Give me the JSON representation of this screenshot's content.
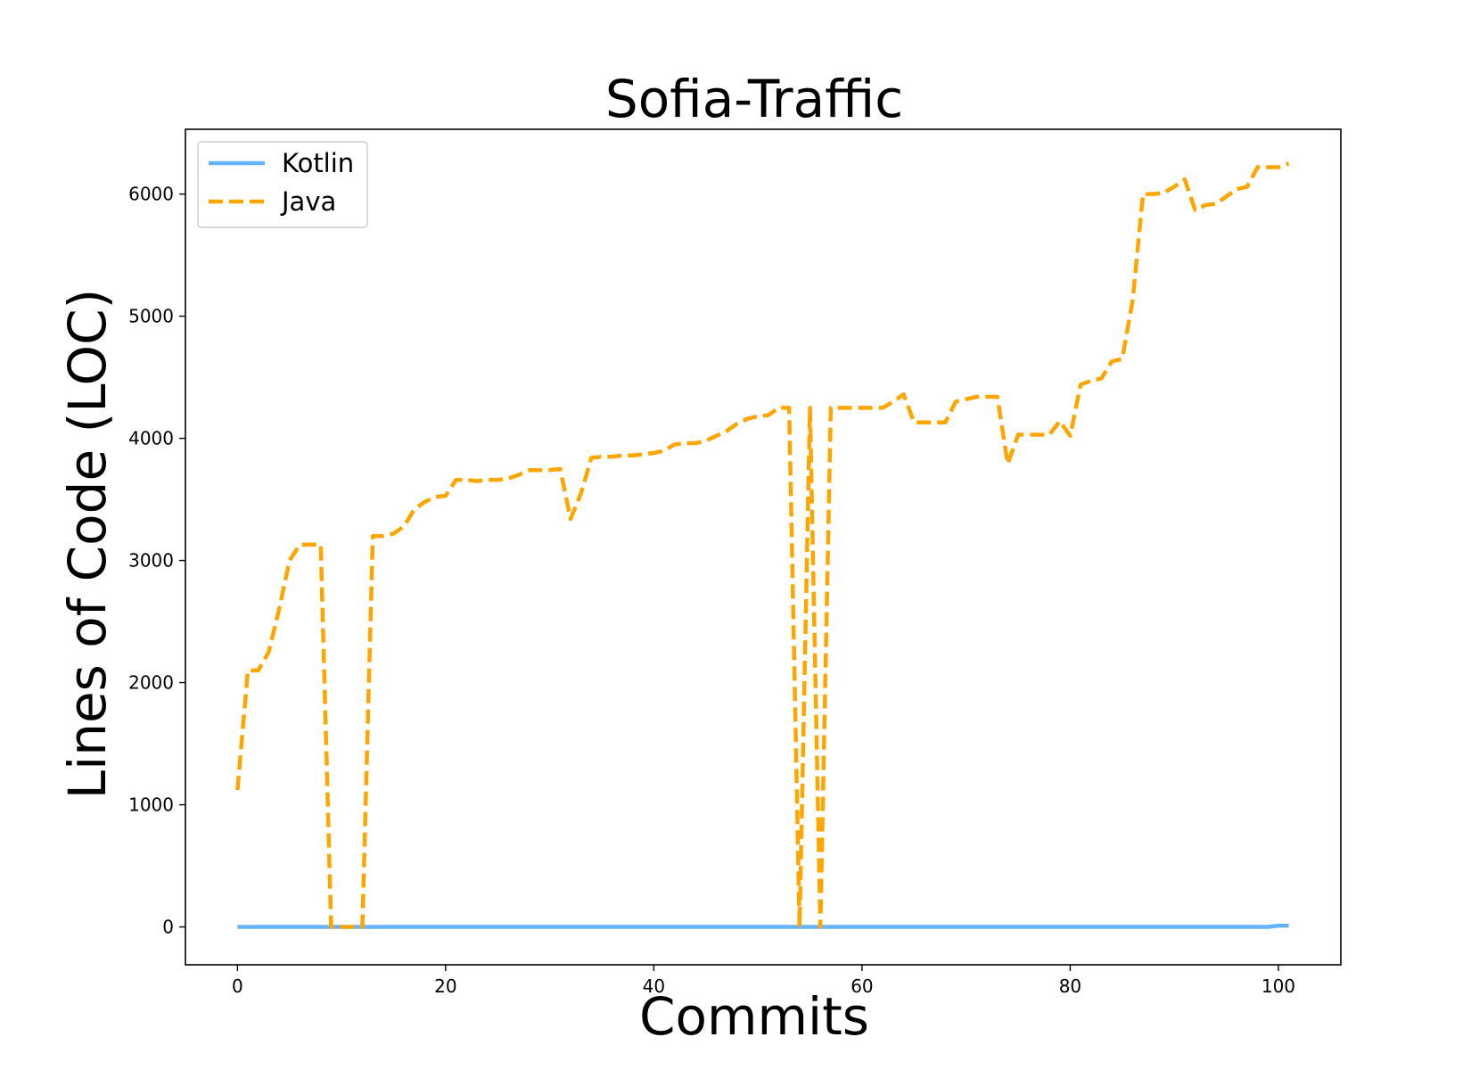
{
  "chart_data": {
    "type": "line",
    "title": "Sofia-Traffic",
    "xlabel": "Commits",
    "ylabel": "Lines of Code (LOC)",
    "xlim": [
      -5,
      106
    ],
    "ylim": [
      -310,
      6530
    ],
    "xticks": [
      0,
      20,
      40,
      60,
      80,
      100
    ],
    "yticks": [
      0,
      1000,
      2000,
      3000,
      4000,
      5000,
      6000
    ],
    "legend_position": "top-left",
    "grid": false,
    "series": [
      {
        "name": "Kotlin",
        "color": "#66b3ff",
        "style": "solid",
        "x": [
          0,
          99,
          100,
          101
        ],
        "y": [
          0,
          0,
          10,
          10
        ]
      },
      {
        "name": "Java",
        "color": "#ffa500",
        "style": "dashed",
        "x": [
          0,
          1,
          2,
          3,
          4,
          5,
          6,
          7,
          8,
          9,
          10,
          11,
          12,
          13,
          14,
          15,
          16,
          17,
          18,
          19,
          20,
          21,
          22,
          23,
          24,
          25,
          26,
          27,
          28,
          29,
          30,
          31,
          32,
          33,
          34,
          35,
          36,
          37,
          38,
          39,
          40,
          41,
          42,
          43,
          44,
          45,
          46,
          47,
          48,
          49,
          50,
          51,
          52,
          53,
          54,
          55,
          56,
          57,
          58,
          59,
          60,
          61,
          62,
          63,
          64,
          65,
          66,
          67,
          68,
          69,
          70,
          71,
          72,
          73,
          74,
          75,
          76,
          77,
          78,
          79,
          80,
          81,
          82,
          83,
          84,
          85,
          86,
          87,
          88,
          89,
          90,
          91,
          92,
          93,
          94,
          95,
          96,
          97,
          98,
          99,
          100,
          101
        ],
        "y": [
          1120,
          2100,
          2100,
          2250,
          2600,
          3000,
          3130,
          3130,
          3130,
          0,
          0,
          0,
          0,
          3200,
          3200,
          3220,
          3280,
          3420,
          3480,
          3520,
          3530,
          3660,
          3660,
          3650,
          3660,
          3660,
          3670,
          3700,
          3740,
          3740,
          3740,
          3750,
          3340,
          3550,
          3840,
          3850,
          3850,
          3860,
          3860,
          3870,
          3880,
          3900,
          3950,
          3960,
          3960,
          3980,
          4020,
          4060,
          4120,
          4160,
          4180,
          4190,
          4250,
          4250,
          0,
          4250,
          0,
          4250,
          4250,
          4250,
          4250,
          4250,
          4250,
          4300,
          4360,
          4130,
          4130,
          4130,
          4130,
          4300,
          4320,
          4340,
          4340,
          4340,
          3790,
          4030,
          4030,
          4030,
          4030,
          4140,
          4020,
          4440,
          4470,
          4490,
          4630,
          4650,
          5130,
          6000,
          6000,
          6010,
          6060,
          6120,
          5870,
          5910,
          5920,
          5980,
          6040,
          6060,
          6220,
          6220,
          6220,
          6250
        ]
      }
    ]
  }
}
